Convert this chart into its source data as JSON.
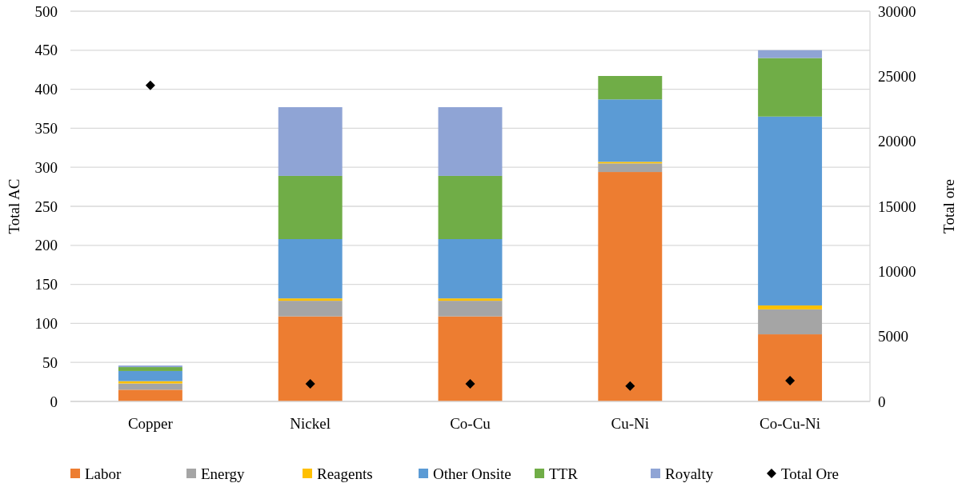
{
  "chart_data": {
    "type": "bar",
    "stacked": true,
    "ylabel": "Total AC",
    "y2label": "Total ore",
    "categories": [
      "Copper",
      "Nickel",
      "Co-Cu",
      "Cu-Ni",
      "Co-Cu-Ni"
    ],
    "series": [
      {
        "name": "Labor",
        "color": "#ed7d31",
        "values": [
          15,
          109,
          109,
          294,
          86
        ]
      },
      {
        "name": "Energy",
        "color": "#a5a5a5",
        "values": [
          8,
          20,
          20,
          11,
          32
        ]
      },
      {
        "name": "Reagents",
        "color": "#ffc000",
        "values": [
          3,
          3,
          3,
          2,
          5
        ]
      },
      {
        "name": "Other Onsite",
        "color": "#5b9bd5",
        "values": [
          13,
          76,
          76,
          80,
          242
        ]
      },
      {
        "name": "TTR",
        "color": "#70ad47",
        "values": [
          5,
          81,
          81,
          30,
          75
        ]
      },
      {
        "name": "Royalty",
        "color": "#8fa4d5",
        "values": [
          2,
          88,
          88,
          0,
          10
        ]
      },
      {
        "name": "Total Ore",
        "type": "scatter",
        "axis": "y2",
        "marker": "diamond",
        "color": "#000000",
        "values": [
          24300,
          1350,
          1350,
          1190,
          1600
        ]
      }
    ],
    "ylim": [
      0,
      500
    ],
    "yticks": [
      0,
      50,
      100,
      150,
      200,
      250,
      300,
      350,
      400,
      450,
      500
    ],
    "y2lim": [
      0,
      30000
    ],
    "y2ticks": [
      0,
      5000,
      10000,
      15000,
      20000,
      25000,
      30000
    ],
    "grid": "y",
    "legend": "bottom"
  }
}
